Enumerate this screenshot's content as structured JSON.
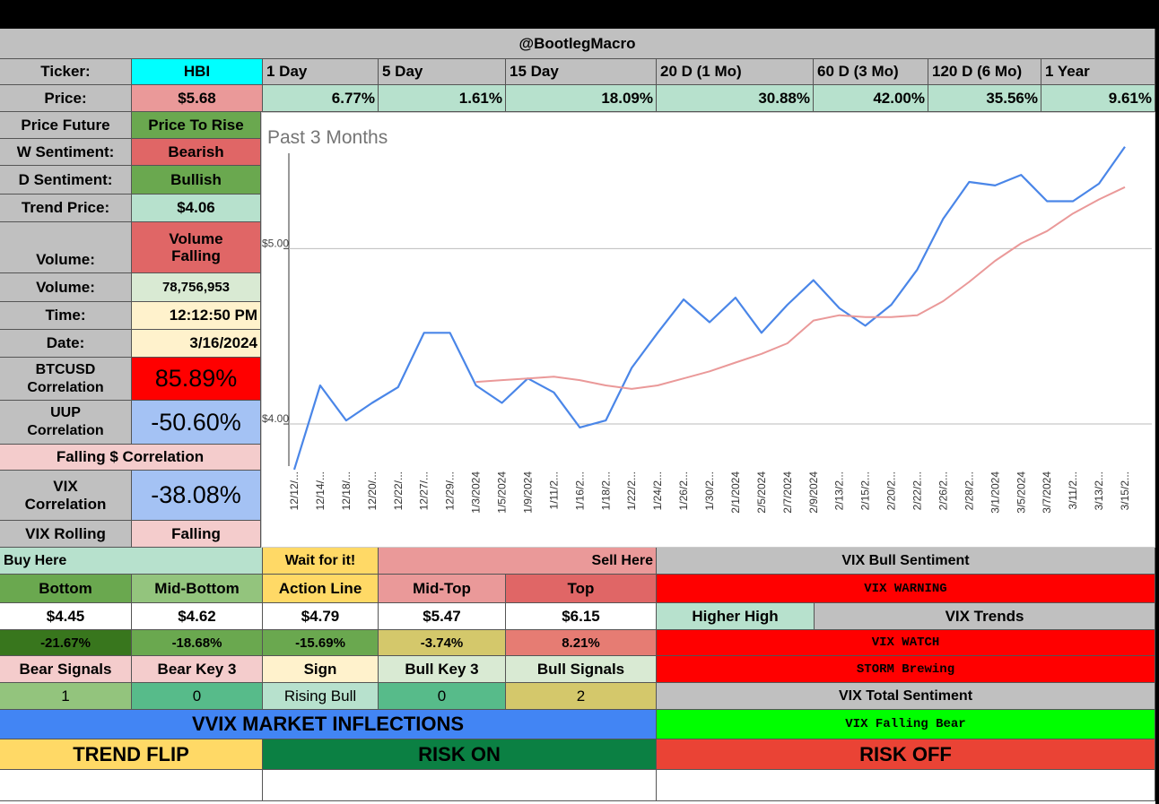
{
  "header": {
    "title": "@BootlegMacro"
  },
  "ticker_row": {
    "label": "Ticker:",
    "value": "HBI",
    "periods": [
      "1 Day",
      "5 Day",
      "15 Day",
      "20 D (1 Mo)",
      "60 D (3 Mo)",
      "120 D (6 Mo)",
      "1 Year"
    ]
  },
  "price_row": {
    "label": "Price:",
    "value": "$5.68",
    "changes": [
      "6.77%",
      "1.61%",
      "18.09%",
      "30.88%",
      "42.00%",
      "35.56%",
      "9.61%"
    ]
  },
  "left_panel": {
    "price_future": {
      "label": "Price Future",
      "value": "Price To Rise"
    },
    "w_sentiment": {
      "label": "W Sentiment:",
      "value": "Bearish"
    },
    "d_sentiment": {
      "label": "D Sentiment:",
      "value": "Bullish"
    },
    "trend_price": {
      "label": "Trend Price:",
      "value": "$4.06"
    },
    "volume_trend": {
      "label": "Volume:",
      "value": "Volume Falling"
    },
    "volume": {
      "label": "Volume:",
      "value": "78,756,953"
    },
    "time": {
      "label": "Time:",
      "value": "12:12:50 PM"
    },
    "date": {
      "label": "Date:",
      "value": "3/16/2024"
    },
    "btc_corr": {
      "label": "BTCUSD Correlation",
      "value": "85.89%"
    },
    "uup_corr": {
      "label": "UUP Correlation",
      "value": "-50.60%"
    },
    "falling_corr": {
      "label": "Falling $ Correlation"
    },
    "vix_corr": {
      "label": "VIX Correlation",
      "value": "-38.08%"
    },
    "vix_rolling": {
      "label": "VIX Rolling",
      "value": "Falling"
    }
  },
  "chart_data": {
    "type": "line",
    "title": "Past 3 Months",
    "x": [
      "12/12/2023",
      "12/14/2023",
      "12/18/2023",
      "12/20/2023",
      "12/22/2023",
      "12/27/2023",
      "12/29/2023",
      "1/3/2024",
      "1/5/2024",
      "1/9/2024",
      "1/11/2024",
      "1/16/2024",
      "1/18/2024",
      "1/22/2024",
      "1/24/2024",
      "1/26/2024",
      "1/30/2024",
      "2/1/2024",
      "2/5/2024",
      "2/7/2024",
      "2/9/2024",
      "2/13/2024",
      "2/15/2024",
      "2/20/2024",
      "2/22/2024",
      "2/26/2024",
      "2/28/2024",
      "3/1/2024",
      "3/5/2024",
      "3/7/2024",
      "3/11/2024",
      "3/13/2024",
      "3/15/2024"
    ],
    "x_tick_labels": [
      "12/12/...",
      "12/14/...",
      "12/18/...",
      "12/20/...",
      "12/22/...",
      "12/27/...",
      "12/29/...",
      "1/3/2024",
      "1/5/2024",
      "1/9/2024",
      "1/11/2...",
      "1/16/2...",
      "1/18/2...",
      "1/22/2...",
      "1/24/2...",
      "1/26/2...",
      "1/30/2...",
      "2/1/2024",
      "2/5/2024",
      "2/7/2024",
      "2/9/2024",
      "2/13/2...",
      "2/15/2...",
      "2/20/2...",
      "2/22/2...",
      "2/26/2...",
      "2/28/2...",
      "3/1/2024",
      "3/5/2024",
      "3/7/2024",
      "3/11/2...",
      "3/13/2...",
      "3/15/2..."
    ],
    "y_tick_labels": [
      "$5.00",
      "$4.00"
    ],
    "y_ticks": [
      5.0,
      4.0
    ],
    "ylim": [
      3.76,
      5.62
    ],
    "series": [
      {
        "color": "#4a86e8",
        "values": [
          3.74,
          4.22,
          4.02,
          4.12,
          4.21,
          4.52,
          4.52,
          4.22,
          4.12,
          4.26,
          4.18,
          3.98,
          4.02,
          4.32,
          4.52,
          4.71,
          4.58,
          4.72,
          4.52,
          4.68,
          4.82,
          4.66,
          4.56,
          4.68,
          4.88,
          5.17,
          5.38,
          5.36,
          5.42,
          5.27,
          5.27,
          5.37,
          5.58
        ]
      },
      {
        "color": "#ea9999",
        "values": [
          null,
          null,
          null,
          null,
          null,
          null,
          null,
          4.24,
          4.25,
          4.26,
          4.27,
          4.25,
          4.22,
          4.2,
          4.22,
          4.26,
          4.3,
          4.35,
          4.4,
          4.46,
          4.59,
          4.62,
          4.61,
          4.61,
          4.62,
          4.7,
          4.81,
          4.93,
          5.03,
          5.1,
          5.2,
          5.28,
          5.35
        ]
      }
    ],
    "grid": true
  },
  "levels": {
    "buy_label": "Buy Here",
    "wait_label": "Wait for it!",
    "sell_label": "Sell Here",
    "names": [
      "Bottom",
      "Mid-Bottom",
      "Action Line",
      "Mid-Top",
      "Top"
    ],
    "prices": [
      "$4.45",
      "$4.62",
      "$4.79",
      "$5.47",
      "$6.15"
    ],
    "pcts": [
      "-21.67%",
      "-18.68%",
      "-15.69%",
      "-3.74%",
      "8.21%"
    ],
    "signal_names": [
      "Bear Signals",
      "Bear Key 3",
      "Sign",
      "Bull Key 3",
      "Bull Signals"
    ],
    "signal_values": [
      "1",
      "0",
      "Rising Bull",
      "0",
      "2"
    ]
  },
  "vix": {
    "bull_sentiment_label": "VIX Bull Sentiment",
    "warning": "VIX WARNING",
    "higher_high": "Higher High",
    "trends_label": "VIX Trends",
    "watch": "VIX WATCH",
    "storm": "STORM Brewing",
    "total_sentiment_label": "VIX Total Sentiment",
    "falling_bear": "VIX Falling Bear"
  },
  "footer": {
    "vvix_label": "VVIX MARKET INFLECTIONS",
    "trend_flip": "TREND FLIP",
    "risk_on": "RISK ON",
    "risk_off": "RISK OFF"
  },
  "colors": {
    "cyan": "#00ffff",
    "pink": "#ea9999",
    "mint": "#b7e1cd",
    "green": "#6aa84f",
    "red_soft": "#e06666",
    "red": "#ff0000",
    "grey": "#c0c0c0",
    "light_pink": "#f4cccc",
    "blue_soft": "#a4c2f4",
    "yellow_light": "#fff2cc",
    "yellow": "#ffd966",
    "blue": "#4285f4",
    "dark_green": "#0b8043",
    "bright_green": "#00ff00",
    "orange_red": "#ea4335"
  }
}
